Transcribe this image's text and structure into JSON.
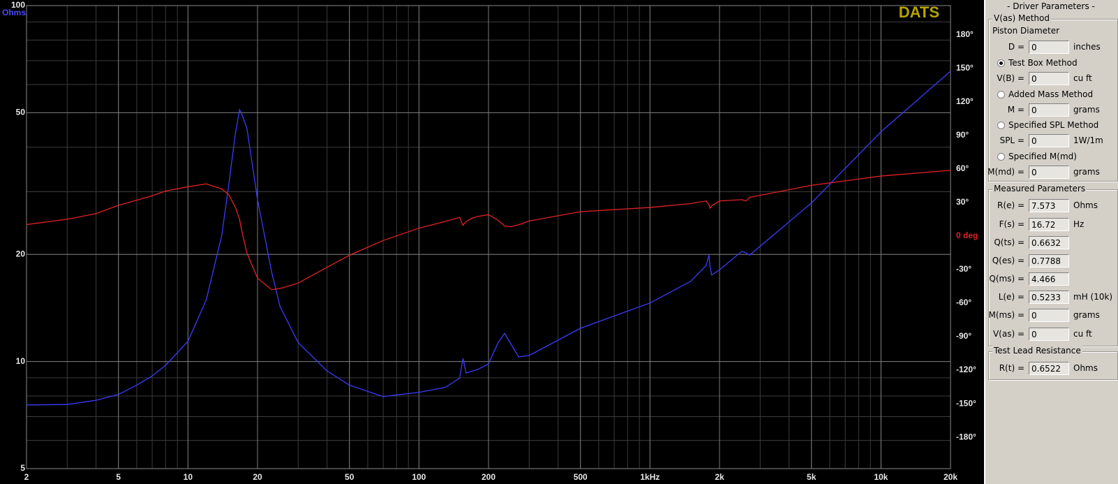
{
  "chart_data": {
    "type": "line",
    "title": "DATS",
    "ylabel": "Ohms",
    "x": [
      2,
      3,
      4,
      5,
      6,
      7,
      8,
      10,
      12,
      14,
      15,
      16,
      16.72,
      17,
      18,
      20,
      23,
      25,
      30,
      40,
      50,
      70,
      100,
      130,
      150,
      155,
      160,
      170,
      180,
      200,
      220,
      235,
      250,
      270,
      300,
      500,
      1000,
      1500,
      1750,
      1800,
      1820,
      1850,
      2000,
      2500,
      2600,
      2700,
      5000,
      10000,
      20000
    ],
    "series": [
      {
        "color": "#3b3bff",
        "values": [
          7.55,
          7.57,
          7.78,
          8.08,
          8.58,
          9.11,
          9.76,
          11.4,
          14.9,
          22.6,
          31.2,
          43.2,
          51,
          50,
          45.2,
          28.5,
          17.9,
          14.3,
          11.3,
          9.41,
          8.58,
          7.97,
          8.19,
          8.46,
          8.98,
          10.2,
          9.28,
          9.4,
          9.5,
          9.85,
          11.3,
          12.0,
          11.2,
          10.3,
          10.4,
          12.4,
          14.6,
          16.8,
          18.6,
          19.9,
          18.5,
          17.5,
          18.1,
          20.4,
          20.2,
          19.9,
          27.9,
          44.2,
          65.4
        ]
      },
      {
        "color": "#e32222",
        "axis": "y2",
        "values": [
          10.2,
          15,
          20,
          27.4,
          32,
          36,
          40.2,
          44,
          46.6,
          42.1,
          37,
          26.2,
          15,
          7,
          -15.3,
          -37.7,
          -47.9,
          -47,
          -42.1,
          -28,
          -17.2,
          -4,
          7,
          13,
          16.6,
          9.6,
          13,
          16,
          17.5,
          19.1,
          14,
          9,
          8.3,
          10,
          13.4,
          21.7,
          25.5,
          29,
          31.3,
          28,
          24.9,
          27,
          31.3,
          32.5,
          31.3,
          34.5,
          45.3,
          53.6,
          58.7
        ]
      }
    ],
    "xlim": [
      2,
      20000
    ],
    "xlog": true,
    "xticks": [
      2,
      5,
      10,
      20,
      50,
      100,
      200,
      500,
      {
        "value": 1000,
        "label": "1kHz"
      },
      {
        "value": 2000,
        "label": "2k"
      },
      {
        "value": 5000,
        "label": "5k"
      },
      {
        "value": 10000,
        "label": "10k"
      },
      {
        "value": 20000,
        "label": "20k"
      }
    ],
    "ylim": [
      5,
      100
    ],
    "ylog": true,
    "yticks": [
      5,
      10,
      20,
      50,
      100
    ],
    "y2lim": [
      -208,
      206
    ],
    "y2ticks": [
      {
        "value": 180,
        "label": "180°"
      },
      {
        "value": 150,
        "label": "150°"
      },
      {
        "value": 120,
        "label": "120°"
      },
      {
        "value": 90,
        "label": "90°"
      },
      {
        "value": 60,
        "label": "60°"
      },
      {
        "value": 30,
        "label": "30°"
      },
      {
        "value": 0,
        "label": "0 deg"
      },
      {
        "value": -30,
        "label": "-30°"
      },
      {
        "value": -60,
        "label": "-60°"
      },
      {
        "value": -90,
        "label": "-90°"
      },
      {
        "value": -120,
        "label": "-120°"
      },
      {
        "value": -150,
        "label": "-150°"
      },
      {
        "value": -180,
        "label": "-180°"
      }
    ],
    "grid": true
  },
  "panel": {
    "title": "- Driver Parameters -",
    "vas_method": {
      "title": "V(as) Method",
      "heading": "Piston Diameter",
      "fields": [
        {
          "label": "D =",
          "value": "0",
          "unit": "inches"
        },
        {
          "label": "V(B) =",
          "value": "0",
          "unit": "cu ft"
        },
        {
          "label": "M =",
          "value": "0",
          "unit": "grams"
        },
        {
          "label": "SPL =",
          "value": "0",
          "unit": "1W/1m"
        },
        {
          "label": "M(md) =",
          "value": "0",
          "unit": "grams"
        }
      ],
      "options": [
        "Test Box Method",
        "Added Mass Method",
        "Specified SPL Method",
        "Specified M(md)"
      ],
      "selected": 0
    },
    "measured": {
      "title": "Measured Parameters",
      "fields": [
        {
          "label": "R(e) =",
          "value": "7.573",
          "unit": "Ohms"
        },
        {
          "label": "F(s) =",
          "value": "16.72",
          "unit": "Hz"
        },
        {
          "label": "Q(ts) =",
          "value": "0.6632"
        },
        {
          "label": "Q(es) =",
          "value": "0.7788"
        },
        {
          "label": "Q(ms) =",
          "value": "4.466"
        },
        {
          "label": "L(e) =",
          "value": "0.5233",
          "unit": "mH (10k)"
        },
        {
          "label": "M(ms) =",
          "value": "0",
          "unit": "grams"
        },
        {
          "label": "V(as) =",
          "value": "0",
          "unit": "cu ft"
        }
      ]
    },
    "test_lead": {
      "title": "Test Lead Resistance",
      "fields": [
        {
          "label": "R(t) =",
          "value": "0.6522",
          "unit": "Ohms"
        }
      ]
    }
  }
}
